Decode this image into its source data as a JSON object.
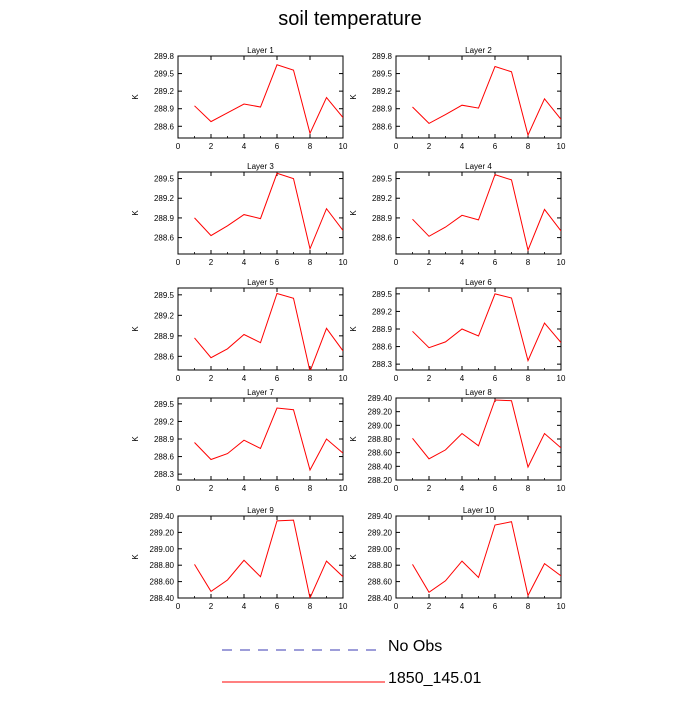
{
  "title": "soil temperature",
  "legend": [
    {
      "name": "No Obs",
      "color": "#3b3bb3",
      "dash": "dashed"
    },
    {
      "name": "1850_145.01",
      "color": "#ff0000",
      "dash": "solid"
    }
  ],
  "chart_data": [
    {
      "type": "line",
      "title": "Layer 1",
      "ylabel": "K",
      "xlim": [
        0,
        10
      ],
      "ylim": [
        288.4,
        289.8
      ],
      "xticks": [
        "0",
        "2",
        "4",
        "6",
        "8",
        "10"
      ],
      "yticks": [
        "288.6",
        "288.9",
        "289.2",
        "289.5",
        "289.8"
      ],
      "x": [
        1,
        2,
        3,
        4,
        5,
        6,
        7,
        8,
        9,
        10
      ],
      "series": [
        {
          "name": "1850_145.01",
          "values": [
            288.95,
            288.68,
            288.83,
            288.98,
            288.93,
            289.65,
            289.56,
            288.48,
            289.09,
            288.75
          ]
        }
      ]
    },
    {
      "type": "line",
      "title": "Layer 2",
      "ylabel": "K",
      "xlim": [
        0,
        10
      ],
      "ylim": [
        288.4,
        289.8
      ],
      "xticks": [
        "0",
        "2",
        "4",
        "6",
        "8",
        "10"
      ],
      "yticks": [
        "288.6",
        "288.9",
        "289.2",
        "289.5",
        "289.8"
      ],
      "x": [
        1,
        2,
        3,
        4,
        5,
        6,
        7,
        8,
        9,
        10
      ],
      "series": [
        {
          "name": "1850_145.01",
          "values": [
            288.93,
            288.65,
            288.8,
            288.96,
            288.91,
            289.62,
            289.53,
            288.45,
            289.07,
            288.72
          ]
        }
      ]
    },
    {
      "type": "line",
      "title": "Layer 3",
      "ylabel": "K",
      "xlim": [
        0,
        10
      ],
      "ylim": [
        288.35,
        289.6
      ],
      "xticks": [
        "0",
        "2",
        "4",
        "6",
        "8",
        "10"
      ],
      "yticks": [
        "288.6",
        "288.9",
        "289.2",
        "289.5"
      ],
      "x": [
        1,
        2,
        3,
        4,
        5,
        6,
        7,
        8,
        9,
        10
      ],
      "series": [
        {
          "name": "1850_145.01",
          "values": [
            288.9,
            288.63,
            288.78,
            288.95,
            288.89,
            289.58,
            289.5,
            288.43,
            289.04,
            288.71
          ]
        }
      ]
    },
    {
      "type": "line",
      "title": "Layer 4",
      "ylabel": "K",
      "xlim": [
        0,
        10
      ],
      "ylim": [
        288.35,
        289.6
      ],
      "xticks": [
        "0",
        "2",
        "4",
        "6",
        "8",
        "10"
      ],
      "yticks": [
        "288.6",
        "288.9",
        "289.2",
        "289.5"
      ],
      "x": [
        1,
        2,
        3,
        4,
        5,
        6,
        7,
        8,
        9,
        10
      ],
      "series": [
        {
          "name": "1850_145.01",
          "values": [
            288.88,
            288.62,
            288.76,
            288.94,
            288.87,
            289.56,
            289.48,
            288.41,
            289.03,
            288.7
          ]
        }
      ]
    },
    {
      "type": "line",
      "title": "Layer 5",
      "ylabel": "K",
      "xlim": [
        0,
        10
      ],
      "ylim": [
        288.4,
        289.6
      ],
      "xticks": [
        "0",
        "2",
        "4",
        "6",
        "8",
        "10"
      ],
      "yticks": [
        "288.6",
        "288.9",
        "289.2",
        "289.5"
      ],
      "x": [
        1,
        2,
        3,
        4,
        5,
        6,
        7,
        8,
        9,
        10
      ],
      "series": [
        {
          "name": "1850_145.01",
          "values": [
            288.87,
            288.58,
            288.71,
            288.92,
            288.8,
            289.52,
            289.45,
            288.38,
            289.01,
            288.68
          ]
        }
      ]
    },
    {
      "type": "line",
      "title": "Layer 6",
      "ylabel": "K",
      "xlim": [
        0,
        10
      ],
      "ylim": [
        288.2,
        289.6
      ],
      "xticks": [
        "0",
        "2",
        "4",
        "6",
        "8",
        "10"
      ],
      "yticks": [
        "288.3",
        "288.6",
        "288.9",
        "289.2",
        "289.5"
      ],
      "x": [
        1,
        2,
        3,
        4,
        5,
        6,
        7,
        8,
        9,
        10
      ],
      "series": [
        {
          "name": "1850_145.01",
          "values": [
            288.86,
            288.58,
            288.68,
            288.9,
            288.78,
            289.5,
            289.43,
            288.36,
            289.0,
            288.67
          ]
        }
      ]
    },
    {
      "type": "line",
      "title": "Layer 7",
      "ylabel": "K",
      "xlim": [
        0,
        10
      ],
      "ylim": [
        288.2,
        289.6
      ],
      "xticks": [
        "0",
        "2",
        "4",
        "6",
        "8",
        "10"
      ],
      "yticks": [
        "288.3",
        "288.6",
        "288.9",
        "289.2",
        "289.5"
      ],
      "x": [
        1,
        2,
        3,
        4,
        5,
        6,
        7,
        8,
        9,
        10
      ],
      "series": [
        {
          "name": "1850_145.01",
          "values": [
            288.84,
            288.55,
            288.65,
            288.88,
            288.74,
            289.43,
            289.4,
            288.37,
            288.9,
            288.66
          ]
        }
      ]
    },
    {
      "type": "line",
      "title": "Layer 8",
      "ylabel": "K",
      "xlim": [
        0,
        10
      ],
      "ylim": [
        288.2,
        289.4
      ],
      "xticks": [
        "0",
        "2",
        "4",
        "6",
        "8",
        "10"
      ],
      "yticks": [
        "288.20",
        "288.40",
        "288.60",
        "288.80",
        "289.00",
        "289.20",
        "289.40"
      ],
      "x": [
        1,
        2,
        3,
        4,
        5,
        6,
        7,
        8,
        9,
        10
      ],
      "series": [
        {
          "name": "1850_145.01",
          "values": [
            288.81,
            288.51,
            288.64,
            288.88,
            288.7,
            289.37,
            289.36,
            288.39,
            288.88,
            288.67
          ]
        }
      ]
    },
    {
      "type": "line",
      "title": "Layer 9",
      "ylabel": "K",
      "xlim": [
        0,
        10
      ],
      "ylim": [
        288.4,
        289.4
      ],
      "xticks": [
        "0",
        "2",
        "4",
        "6",
        "8",
        "10"
      ],
      "yticks": [
        "288.40",
        "288.60",
        "288.80",
        "289.00",
        "289.20",
        "289.40"
      ],
      "x": [
        1,
        2,
        3,
        4,
        5,
        6,
        7,
        8,
        9,
        10
      ],
      "series": [
        {
          "name": "1850_145.01",
          "values": [
            288.81,
            288.48,
            288.62,
            288.86,
            288.66,
            289.34,
            289.35,
            288.4,
            288.85,
            288.66
          ]
        }
      ]
    },
    {
      "type": "line",
      "title": "Layer 10",
      "ylabel": "K",
      "xlim": [
        0,
        10
      ],
      "ylim": [
        288.4,
        289.4
      ],
      "xticks": [
        "0",
        "2",
        "4",
        "6",
        "8",
        "10"
      ],
      "yticks": [
        "288.40",
        "288.60",
        "288.80",
        "289.00",
        "289.20",
        "289.40"
      ],
      "x": [
        1,
        2,
        3,
        4,
        5,
        6,
        7,
        8,
        9,
        10
      ],
      "series": [
        {
          "name": "1850_145.01",
          "values": [
            288.81,
            288.47,
            288.61,
            288.85,
            288.65,
            289.29,
            289.33,
            288.43,
            288.82,
            288.67
          ]
        }
      ]
    }
  ]
}
